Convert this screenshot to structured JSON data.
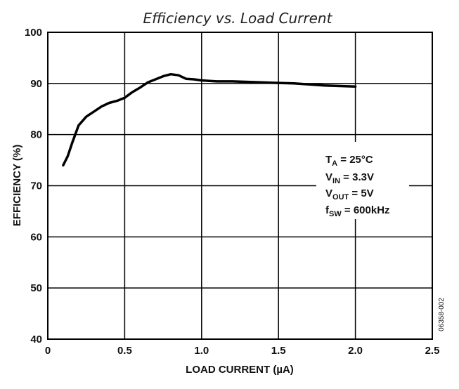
{
  "chart_data": {
    "type": "line",
    "title": "Efficiency vs. Load Current",
    "xlabel": "LOAD CURRENT (µA)",
    "ylabel": "EFFICIENCY (%)",
    "xlim": [
      0,
      2.5
    ],
    "ylim": [
      40,
      100
    ],
    "x_ticks": [
      0,
      0.5,
      1.0,
      1.5,
      2.0,
      2.5
    ],
    "x_tick_labels": [
      "0",
      "0.5",
      "1.0",
      "1.5",
      "2.0",
      "2.5"
    ],
    "y_ticks": [
      40,
      50,
      60,
      70,
      80,
      90,
      100
    ],
    "y_tick_labels": [
      "40",
      "50",
      "60",
      "70",
      "80",
      "90",
      "100"
    ],
    "grid": true,
    "series": [
      {
        "name": "Efficiency",
        "x": [
          0.1,
          0.13,
          0.16,
          0.2,
          0.25,
          0.3,
          0.35,
          0.4,
          0.45,
          0.5,
          0.55,
          0.6,
          0.65,
          0.7,
          0.75,
          0.8,
          0.85,
          0.9,
          0.95,
          1.0,
          1.05,
          1.1,
          1.2,
          1.3,
          1.4,
          1.5,
          1.6,
          1.7,
          1.8,
          1.9,
          2.0
        ],
        "y": [
          74.0,
          75.8,
          78.5,
          81.8,
          83.5,
          84.5,
          85.5,
          86.2,
          86.6,
          87.2,
          88.3,
          89.2,
          90.2,
          90.8,
          91.4,
          91.8,
          91.6,
          90.9,
          90.8,
          90.6,
          90.5,
          90.4,
          90.4,
          90.3,
          90.2,
          90.1,
          90.0,
          89.8,
          89.6,
          89.5,
          89.4
        ]
      }
    ],
    "annotation": {
      "lines": [
        {
          "main": "T",
          "sub": "A",
          "rest": " = 25°C"
        },
        {
          "main": "V",
          "sub": "IN",
          "rest": " = 3.3V"
        },
        {
          "main": "V",
          "sub": "OUT",
          "rest": " = 5V"
        },
        {
          "main": "f",
          "sub": "SW",
          "rest": " = 600kHz"
        }
      ]
    },
    "figure_id": "06358-002"
  }
}
